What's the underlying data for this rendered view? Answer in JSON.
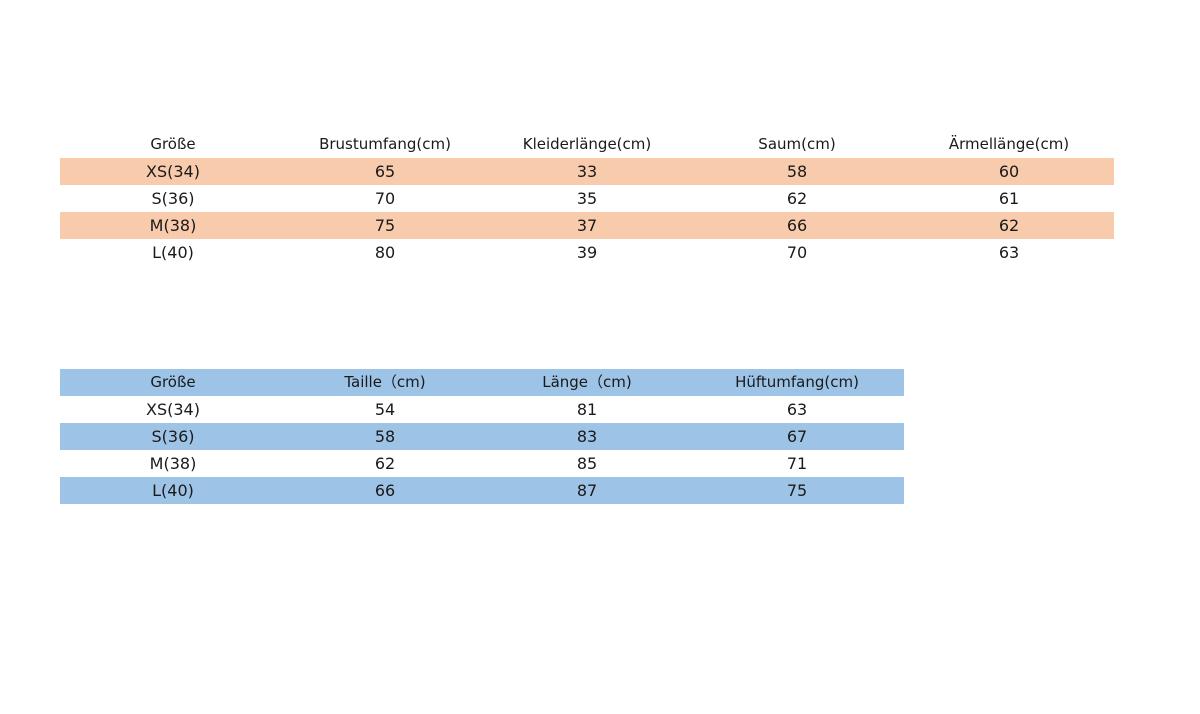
{
  "colors": {
    "top_highlight": "#f7cbac",
    "bottom_highlight": "#9dc3e6"
  },
  "table_top": {
    "headers": [
      "Größe",
      "Brustumfang(cm)",
      "Kleiderlänge(cm)",
      "Saum(cm)",
      "Ärmellänge(cm)"
    ],
    "rows": [
      [
        "XS(34)",
        "65",
        "33",
        "58",
        "60"
      ],
      [
        "S(36)",
        "70",
        "35",
        "62",
        "61"
      ],
      [
        "M(38)",
        "75",
        "37",
        "66",
        "62"
      ],
      [
        "L(40)",
        "80",
        "39",
        "70",
        "63"
      ]
    ]
  },
  "table_bottom": {
    "headers": [
      "Größe",
      "Taille（cm)",
      "Länge（cm)",
      "Hüftumfang(cm)"
    ],
    "rows": [
      [
        "XS(34)",
        "54",
        "81",
        "63"
      ],
      [
        "S(36)",
        "58",
        "83",
        "67"
      ],
      [
        "M(38)",
        "62",
        "85",
        "71"
      ],
      [
        "L(40)",
        "66",
        "87",
        "75"
      ]
    ]
  }
}
